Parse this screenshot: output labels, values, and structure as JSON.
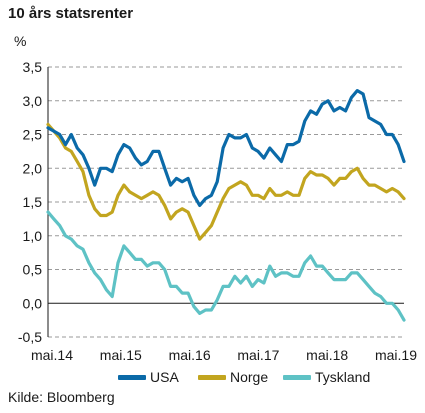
{
  "chart_data": {
    "type": "line",
    "title": "10 års statsrenter",
    "unit": "%",
    "source": "Kilde: Bloomberg",
    "xlabels": [
      "mai.14",
      "mai.15",
      "mai.16",
      "mai.17",
      "mai.18",
      "mai.19"
    ],
    "xlim": [
      "2014-05",
      "2019-06"
    ],
    "ylim": [
      -0.5,
      3.5
    ],
    "yticks": [
      "3,5",
      "3,0",
      "2,5",
      "2,0",
      "1,5",
      "1,0",
      "0,5",
      "0,0",
      "-0,5"
    ],
    "ytick_values": [
      3.5,
      3.0,
      2.5,
      2.0,
      1.5,
      1.0,
      0.5,
      0.0,
      -0.5
    ],
    "grid": "horizontal dashed",
    "legend_position": "bottom",
    "x": [
      "2014-05",
      "2014-06",
      "2014-07",
      "2014-08",
      "2014-09",
      "2014-10",
      "2014-11",
      "2014-12",
      "2015-01",
      "2015-02",
      "2015-03",
      "2015-04",
      "2015-05",
      "2015-06",
      "2015-07",
      "2015-08",
      "2015-09",
      "2015-10",
      "2015-11",
      "2015-12",
      "2016-01",
      "2016-02",
      "2016-03",
      "2016-04",
      "2016-05",
      "2016-06",
      "2016-07",
      "2016-08",
      "2016-09",
      "2016-10",
      "2016-11",
      "2016-12",
      "2017-01",
      "2017-02",
      "2017-03",
      "2017-04",
      "2017-05",
      "2017-06",
      "2017-07",
      "2017-08",
      "2017-09",
      "2017-10",
      "2017-11",
      "2017-12",
      "2018-01",
      "2018-02",
      "2018-03",
      "2018-04",
      "2018-05",
      "2018-06",
      "2018-07",
      "2018-08",
      "2018-09",
      "2018-10",
      "2018-11",
      "2018-12",
      "2019-01",
      "2019-02",
      "2019-03",
      "2019-04",
      "2019-05",
      "2019-06"
    ],
    "series": [
      {
        "name": "USA",
        "color": "#0b6aa8",
        "values": [
          2.6,
          2.55,
          2.5,
          2.35,
          2.5,
          2.3,
          2.2,
          2.0,
          1.75,
          2.0,
          2.0,
          1.95,
          2.2,
          2.35,
          2.3,
          2.15,
          2.05,
          2.1,
          2.25,
          2.25,
          2.0,
          1.75,
          1.85,
          1.8,
          1.85,
          1.6,
          1.45,
          1.55,
          1.6,
          1.8,
          2.3,
          2.5,
          2.45,
          2.45,
          2.5,
          2.3,
          2.25,
          2.15,
          2.3,
          2.2,
          2.1,
          2.35,
          2.35,
          2.4,
          2.7,
          2.85,
          2.8,
          2.95,
          3.0,
          2.85,
          2.9,
          2.85,
          3.05,
          3.15,
          3.1,
          2.75,
          2.7,
          2.65,
          2.5,
          2.5,
          2.35,
          2.1
        ]
      },
      {
        "name": "Norge",
        "color": "#c2a51f",
        "values": [
          2.65,
          2.55,
          2.45,
          2.3,
          2.25,
          2.1,
          1.95,
          1.6,
          1.4,
          1.3,
          1.3,
          1.35,
          1.6,
          1.75,
          1.65,
          1.6,
          1.55,
          1.6,
          1.65,
          1.6,
          1.45,
          1.25,
          1.35,
          1.4,
          1.35,
          1.15,
          0.95,
          1.05,
          1.15,
          1.35,
          1.55,
          1.7,
          1.75,
          1.8,
          1.75,
          1.6,
          1.6,
          1.55,
          1.7,
          1.6,
          1.6,
          1.65,
          1.6,
          1.6,
          1.85,
          1.95,
          1.9,
          1.9,
          1.85,
          1.75,
          1.85,
          1.85,
          1.95,
          2.0,
          1.85,
          1.75,
          1.75,
          1.7,
          1.65,
          1.7,
          1.65,
          1.55
        ]
      },
      {
        "name": "Tyskland",
        "color": "#5ec2c5",
        "values": [
          1.35,
          1.25,
          1.15,
          1.0,
          0.95,
          0.85,
          0.8,
          0.6,
          0.45,
          0.35,
          0.2,
          0.1,
          0.6,
          0.85,
          0.75,
          0.65,
          0.65,
          0.55,
          0.6,
          0.6,
          0.5,
          0.25,
          0.25,
          0.15,
          0.15,
          -0.05,
          -0.15,
          -0.1,
          -0.1,
          0.05,
          0.25,
          0.25,
          0.4,
          0.3,
          0.4,
          0.25,
          0.35,
          0.3,
          0.55,
          0.4,
          0.45,
          0.45,
          0.4,
          0.4,
          0.6,
          0.7,
          0.55,
          0.55,
          0.45,
          0.35,
          0.35,
          0.35,
          0.45,
          0.45,
          0.35,
          0.25,
          0.15,
          0.1,
          0.0,
          0.0,
          -0.1,
          -0.25
        ]
      }
    ]
  }
}
